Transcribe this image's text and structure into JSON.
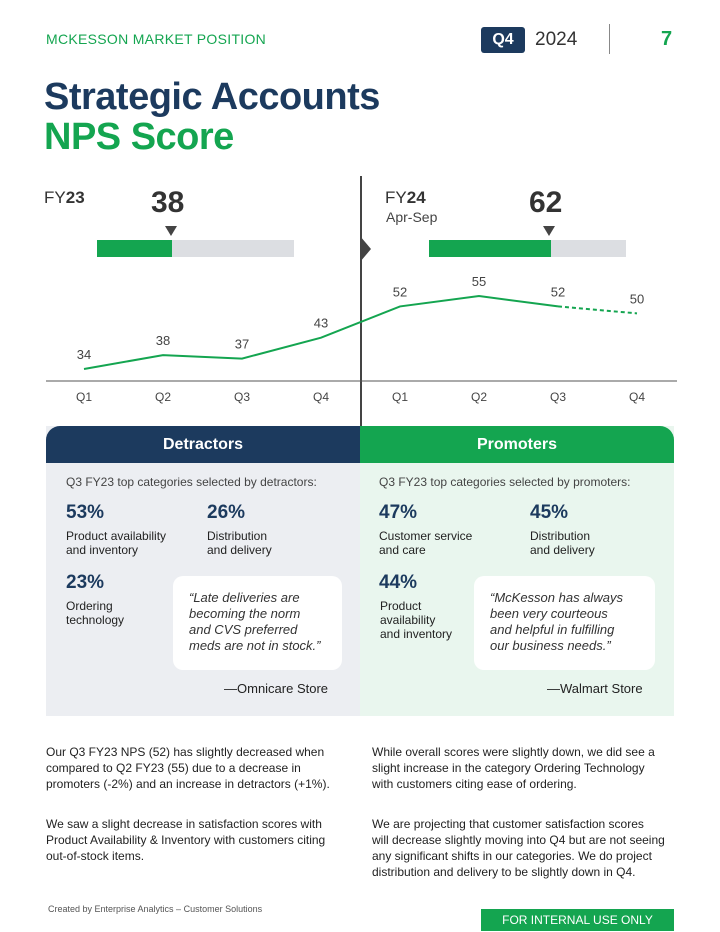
{
  "header": {
    "section_label": "MCKESSON MARKET POSITION",
    "quarter": "Q4",
    "year": "2024",
    "page_number": "7"
  },
  "title": {
    "line1": "Strategic Accounts",
    "line2": "NPS Score"
  },
  "fy23": {
    "label_prefix": "FY",
    "label_year": "23",
    "score": "38",
    "score_fraction": 0.38
  },
  "fy24": {
    "label_prefix": "FY",
    "label_year": "24",
    "period": "Apr-Sep",
    "score": "62",
    "score_fraction": 0.62
  },
  "chart_data": {
    "type": "line",
    "categories": [
      "Q1",
      "Q2",
      "Q3",
      "Q4",
      "Q1",
      "Q2",
      "Q3",
      "Q4"
    ],
    "values": [
      34,
      38,
      37,
      43,
      52,
      55,
      52,
      50
    ],
    "projected_from_index": 6,
    "ylim": [
      30,
      60
    ],
    "grid": false,
    "line_color": "#14a550"
  },
  "detractors": {
    "heading": "Detractors",
    "subtitle": "Q3 FY23 top categories selected by detractors:",
    "items": [
      {
        "pct": "53%",
        "label_line1": "Product availability",
        "label_line2": "and inventory"
      },
      {
        "pct": "26%",
        "label_line1": "Distribution",
        "label_line2": "and delivery"
      },
      {
        "pct": "23%",
        "label_line1": "Ordering",
        "label_line2": "technology"
      }
    ],
    "quote": {
      "line1": "“Late deliveries are",
      "line2": "becoming the norm",
      "line3": "and CVS preferred",
      "line4": "meds are not in stock.”"
    },
    "attribution": "—Omnicare Store"
  },
  "promoters": {
    "heading": "Promoters",
    "subtitle": "Q3 FY23 top categories selected by promoters:",
    "items": [
      {
        "pct": "47%",
        "label_line1": "Customer service",
        "label_line2": "and care"
      },
      {
        "pct": "45%",
        "label_line1": "Distribution",
        "label_line2": "and delivery"
      },
      {
        "pct": "44%",
        "label_line1": "Product",
        "label_line2": "availability",
        "label_line3": "and inventory"
      }
    ],
    "quote": {
      "line1": "“McKesson has always",
      "line2": "been very courteous",
      "line3": "and helpful in fulfilling",
      "line4": "our business needs.”"
    },
    "attribution": "—Walmart Store"
  },
  "body": {
    "left_p1": [
      "Our Q3 FY23 NPS (52) has slightly decreased when",
      "compared to Q2 FY23 (55) due to a decrease in",
      "promoters (-2%) and an increase in detractors (+1%)."
    ],
    "left_p2": [
      "We saw a slight decrease in satisfaction scores with",
      "Product Availability & Inventory with customers citing",
      "out-of-stock items."
    ],
    "right_p1": [
      "While overall scores were slightly down, we did see a",
      "slight increase in the category Ordering Technology",
      "with customers citing ease of ordering."
    ],
    "right_p2": [
      "We are projecting that customer satisfaction scores",
      "will decrease slightly moving into Q4 but are not seeing",
      "any significant shifts in our categories. We do project",
      "distribution and delivery to be slightly down in Q4."
    ]
  },
  "footer": {
    "credit": "Created by Enterprise Analytics – Customer Solutions",
    "internal": "FOR INTERNAL USE ONLY"
  },
  "colors": {
    "navy": "#1c3a5e",
    "green": "#14a550"
  }
}
